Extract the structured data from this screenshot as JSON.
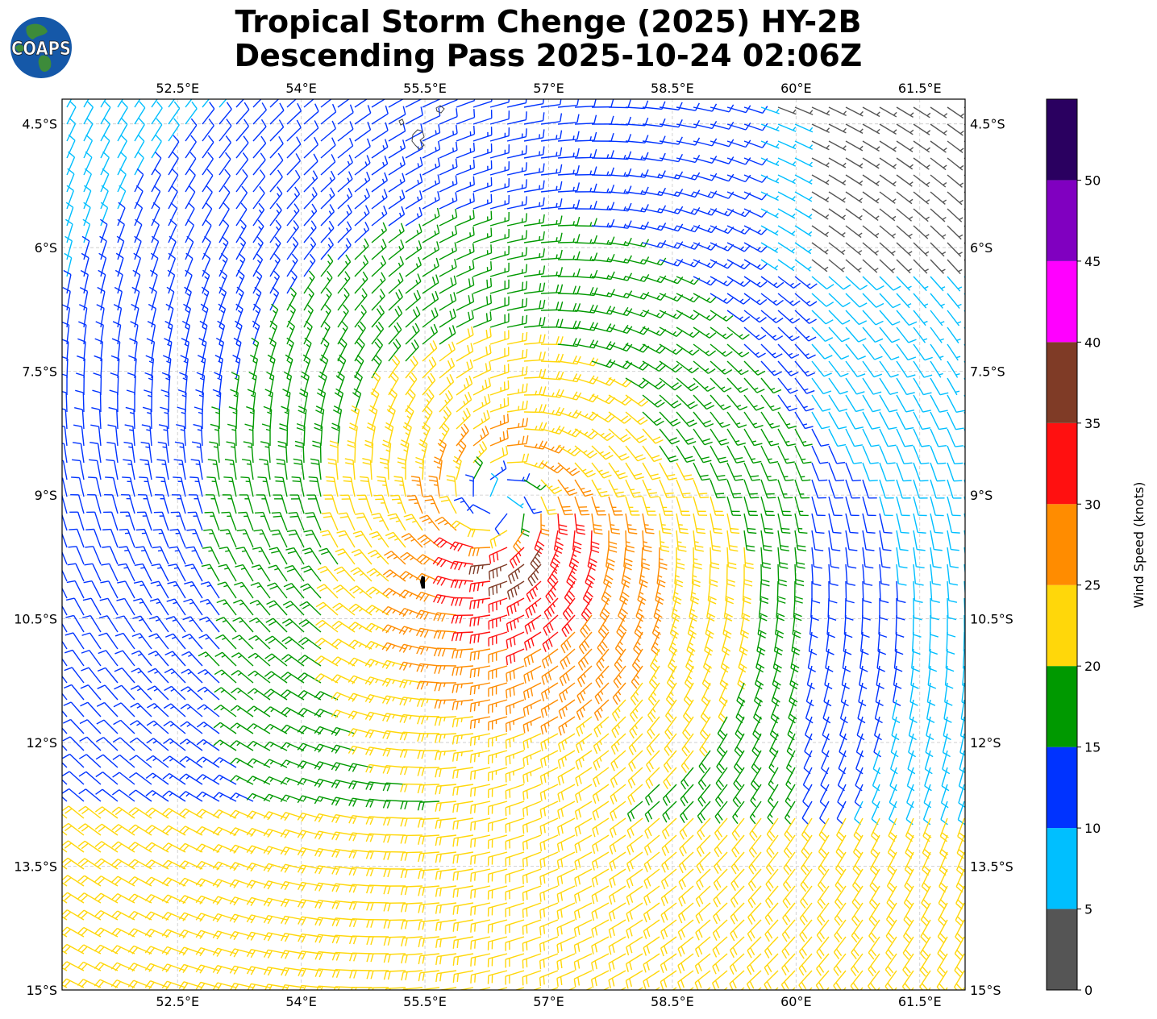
{
  "title": {
    "line1": "Tropical Storm Chenge (2025) HY-2B",
    "line2": "Descending Pass 2025-10-24 02:06Z"
  },
  "logo": {
    "text": "COAPS"
  },
  "map": {
    "lon_ticks": [
      "52.5°E",
      "54°E",
      "55.5°E",
      "57°E",
      "58.5°E",
      "60°E",
      "61.5°E"
    ],
    "lat_ticks": [
      "4.5°S",
      "6°S",
      "7.5°S",
      "9°S",
      "10.5°S",
      "12°S",
      "13.5°S",
      "15°S"
    ],
    "lon_range": [
      51.1,
      62.05
    ],
    "lat_range": [
      -15.0,
      -4.2
    ],
    "grid": true,
    "storm_center": {
      "lon": 56.4,
      "lat": -9.1
    }
  },
  "colorbar": {
    "label": "Wind Speed (knots)",
    "tick_labels": [
      "0",
      "5",
      "10",
      "15",
      "20",
      "25",
      "30",
      "35",
      "40",
      "45",
      "50"
    ],
    "bins": [
      {
        "min": 0,
        "max": 5,
        "color": "#555555"
      },
      {
        "min": 5,
        "max": 10,
        "color": "#00bfff"
      },
      {
        "min": 10,
        "max": 15,
        "color": "#0033ff"
      },
      {
        "min": 15,
        "max": 20,
        "color": "#009900"
      },
      {
        "min": 20,
        "max": 25,
        "color": "#ffd70a"
      },
      {
        "min": 25,
        "max": 30,
        "color": "#ff8c00"
      },
      {
        "min": 30,
        "max": 35,
        "color": "#ff1010"
      },
      {
        "min": 35,
        "max": 40,
        "color": "#7f3b26"
      },
      {
        "min": 40,
        "max": 45,
        "color": "#ff00ff"
      },
      {
        "min": 45,
        "max": 50,
        "color": "#8000c0"
      },
      {
        "min": 50,
        "max": 55,
        "color": "#2a0060"
      }
    ]
  }
}
